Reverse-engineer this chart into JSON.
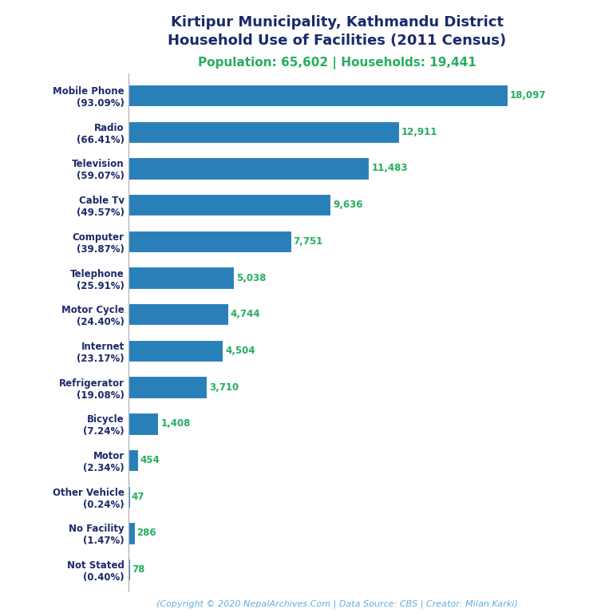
{
  "title_line1": "Kirtipur Municipality, Kathmandu District",
  "title_line2": "Household Use of Facilities (2011 Census)",
  "subtitle": "Population: 65,602 | Households: 19,441",
  "footer": "(Copyright © 2020 NepalArchives.Com | Data Source: CBS | Creator: Milan Karki)",
  "categories": [
    "Mobile Phone\n(93.09%)",
    "Radio\n(66.41%)",
    "Television\n(59.07%)",
    "Cable Tv\n(49.57%)",
    "Computer\n(39.87%)",
    "Telephone\n(25.91%)",
    "Motor Cycle\n(24.40%)",
    "Internet\n(23.17%)",
    "Refrigerator\n(19.08%)",
    "Bicycle\n(7.24%)",
    "Motor\n(2.34%)",
    "Other Vehicle\n(0.24%)",
    "No Facility\n(1.47%)",
    "Not Stated\n(0.40%)"
  ],
  "values": [
    18097,
    12911,
    11483,
    9636,
    7751,
    5038,
    4744,
    4504,
    3710,
    1408,
    454,
    47,
    286,
    78
  ],
  "bar_color": "#2980B9",
  "label_color": "#27AE60",
  "title_color": "#1B2A6B",
  "subtitle_color": "#27AE60",
  "footer_color": "#5DADE2",
  "background_color": "#FFFFFF",
  "xlim": [
    0,
    20500
  ]
}
